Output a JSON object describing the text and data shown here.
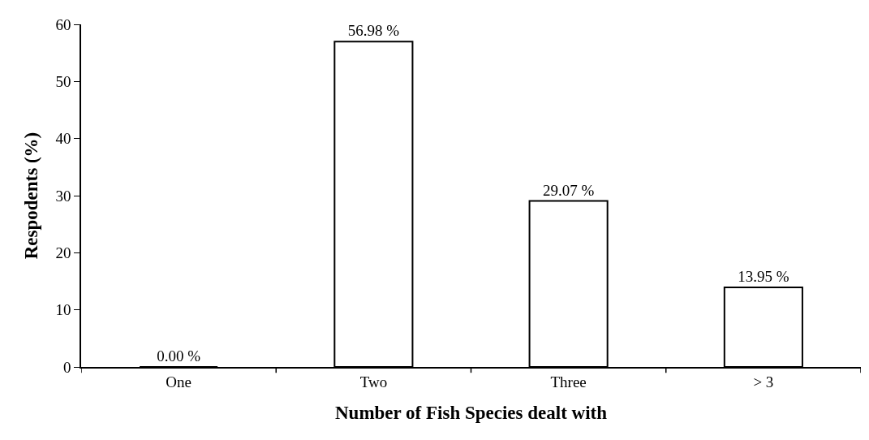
{
  "chart_data": {
    "type": "bar",
    "xlabel": "Number of Fish Species dealt with",
    "ylabel": "Respodents (%)",
    "categories": [
      "One",
      "Two",
      "Three",
      "> 3"
    ],
    "values": [
      0.0,
      56.98,
      29.07,
      13.95
    ],
    "value_labels": [
      "0.00 %",
      "56.98 %",
      "29.07 %",
      "13.95 %"
    ],
    "color": "#ffffff",
    "ylim": [
      0,
      60
    ],
    "yticks": [
      0,
      10,
      20,
      30,
      40,
      50,
      60
    ],
    "legend": false
  }
}
